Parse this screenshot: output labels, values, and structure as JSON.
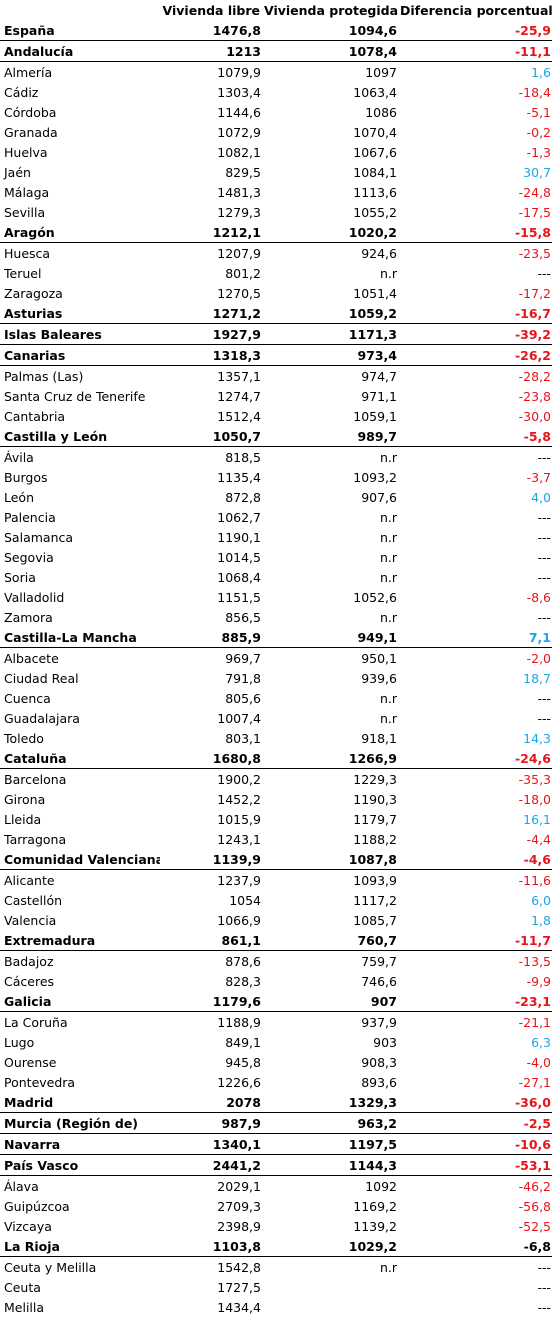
{
  "columns": [
    "Vivienda libre",
    "Vivienda protegida",
    "Diferencia porcentual"
  ],
  "rows": [
    {
      "name": "España",
      "libre": "1476,8",
      "protegida": "1094,6",
      "diff": "-25,9",
      "bold": true,
      "color": "red"
    },
    {
      "name": "Andalucía",
      "libre": "1213",
      "protegida": "1078,4",
      "diff": "-11,1",
      "bold": true,
      "color": "red"
    },
    {
      "name": "Almería",
      "libre": "1079,9",
      "protegida": "1097",
      "diff": "1,6",
      "bold": false,
      "color": "blue"
    },
    {
      "name": "Cádiz",
      "libre": "1303,4",
      "protegida": "1063,4",
      "diff": "-18,4",
      "bold": false,
      "color": "red"
    },
    {
      "name": "Córdoba",
      "libre": "1144,6",
      "protegida": "1086",
      "diff": "-5,1",
      "bold": false,
      "color": "red"
    },
    {
      "name": "Granada",
      "libre": "1072,9",
      "protegida": "1070,4",
      "diff": "-0,2",
      "bold": false,
      "color": "red"
    },
    {
      "name": "Huelva",
      "libre": "1082,1",
      "protegida": "1067,6",
      "diff": "-1,3",
      "bold": false,
      "color": "red"
    },
    {
      "name": "Jaén",
      "libre": "829,5",
      "protegida": "1084,1",
      "diff": "30,7",
      "bold": false,
      "color": "blue"
    },
    {
      "name": "Málaga",
      "libre": "1481,3",
      "protegida": "1113,6",
      "diff": "-24,8",
      "bold": false,
      "color": "red"
    },
    {
      "name": "Sevilla",
      "libre": "1279,3",
      "protegida": "1055,2",
      "diff": "-17,5",
      "bold": false,
      "color": "red"
    },
    {
      "name": "Aragón",
      "libre": "1212,1",
      "protegida": "1020,2",
      "diff": "-15,8",
      "bold": true,
      "color": "red"
    },
    {
      "name": "Huesca",
      "libre": "1207,9",
      "protegida": "924,6",
      "diff": "-23,5",
      "bold": false,
      "color": "red"
    },
    {
      "name": "Teruel",
      "libre": "801,2",
      "protegida": "n.r",
      "diff": "---",
      "bold": false,
      "color": "black"
    },
    {
      "name": "Zaragoza",
      "libre": "1270,5",
      "protegida": "1051,4",
      "diff": "-17,2",
      "bold": false,
      "color": "red"
    },
    {
      "name": "Asturias",
      "libre": "1271,2",
      "protegida": "1059,2",
      "diff": "-16,7",
      "bold": true,
      "color": "red"
    },
    {
      "name": "Islas Baleares",
      "libre": "1927,9",
      "protegida": "1171,3",
      "diff": "-39,2",
      "bold": true,
      "color": "red"
    },
    {
      "name": "Canarias",
      "libre": "1318,3",
      "protegida": "973,4",
      "diff": "-26,2",
      "bold": true,
      "color": "red"
    },
    {
      "name": "Palmas (Las)",
      "libre": "1357,1",
      "protegida": "974,7",
      "diff": "-28,2",
      "bold": false,
      "color": "red"
    },
    {
      "name": "Santa Cruz de Tenerife",
      "libre": "1274,7",
      "protegida": "971,1",
      "diff": "-23,8",
      "bold": false,
      "color": "red"
    },
    {
      "name": "Cantabria",
      "libre": "1512,4",
      "protegida": "1059,1",
      "diff": "-30,0",
      "bold": false,
      "color": "red"
    },
    {
      "name": "Castilla y León",
      "libre": "1050,7",
      "protegida": "989,7",
      "diff": "-5,8",
      "bold": true,
      "color": "red"
    },
    {
      "name": "Ávila",
      "libre": "818,5",
      "protegida": "n.r",
      "diff": "---",
      "bold": false,
      "color": "black"
    },
    {
      "name": "Burgos",
      "libre": "1135,4",
      "protegida": "1093,2",
      "diff": "-3,7",
      "bold": false,
      "color": "red"
    },
    {
      "name": "León",
      "libre": "872,8",
      "protegida": "907,6",
      "diff": "4,0",
      "bold": false,
      "color": "blue"
    },
    {
      "name": "Palencia",
      "libre": "1062,7",
      "protegida": "n.r",
      "diff": "---",
      "bold": false,
      "color": "black"
    },
    {
      "name": "Salamanca",
      "libre": "1190,1",
      "protegida": "n.r",
      "diff": "---",
      "bold": false,
      "color": "black"
    },
    {
      "name": "Segovia",
      "libre": "1014,5",
      "protegida": "n.r",
      "diff": "---",
      "bold": false,
      "color": "black"
    },
    {
      "name": "Soria",
      "libre": "1068,4",
      "protegida": "n.r",
      "diff": "---",
      "bold": false,
      "color": "black"
    },
    {
      "name": "Valladolid",
      "libre": "1151,5",
      "protegida": "1052,6",
      "diff": "-8,6",
      "bold": false,
      "color": "red"
    },
    {
      "name": "Zamora",
      "libre": "856,5",
      "protegida": "n.r",
      "diff": "---",
      "bold": false,
      "color": "black"
    },
    {
      "name": "Castilla-La Mancha",
      "libre": "885,9",
      "protegida": "949,1",
      "diff": "7,1",
      "bold": true,
      "color": "blue"
    },
    {
      "name": "Albacete",
      "libre": "969,7",
      "protegida": "950,1",
      "diff": "-2,0",
      "bold": false,
      "color": "red"
    },
    {
      "name": "Ciudad Real",
      "libre": "791,8",
      "protegida": "939,6",
      "diff": "18,7",
      "bold": false,
      "color": "blue"
    },
    {
      "name": "Cuenca",
      "libre": "805,6",
      "protegida": "n.r",
      "diff": "---",
      "bold": false,
      "color": "black"
    },
    {
      "name": "Guadalajara",
      "libre": "1007,4",
      "protegida": "n.r",
      "diff": "---",
      "bold": false,
      "color": "black"
    },
    {
      "name": "Toledo",
      "libre": "803,1",
      "protegida": "918,1",
      "diff": "14,3",
      "bold": false,
      "color": "blue"
    },
    {
      "name": "Cataluña",
      "libre": "1680,8",
      "protegida": "1266,9",
      "diff": "-24,6",
      "bold": true,
      "color": "red"
    },
    {
      "name": "Barcelona",
      "libre": "1900,2",
      "protegida": "1229,3",
      "diff": "-35,3",
      "bold": false,
      "color": "red"
    },
    {
      "name": "Girona",
      "libre": "1452,2",
      "protegida": "1190,3",
      "diff": "-18,0",
      "bold": false,
      "color": "red"
    },
    {
      "name": "Lleida",
      "libre": "1015,9",
      "protegida": "1179,7",
      "diff": "16,1",
      "bold": false,
      "color": "blue"
    },
    {
      "name": "Tarragona",
      "libre": "1243,1",
      "protegida": "1188,2",
      "diff": "-4,4",
      "bold": false,
      "color": "red"
    },
    {
      "name": "Comunidad Valenciana",
      "libre": "1139,9",
      "protegida": "1087,8",
      "diff": "-4,6",
      "bold": true,
      "color": "red"
    },
    {
      "name": "Alicante",
      "libre": "1237,9",
      "protegida": "1093,9",
      "diff": "-11,6",
      "bold": false,
      "color": "red"
    },
    {
      "name": "Castellón",
      "libre": "1054",
      "protegida": "1117,2",
      "diff": "6,0",
      "bold": false,
      "color": "blue"
    },
    {
      "name": "Valencia",
      "libre": "1066,9",
      "protegida": "1085,7",
      "diff": "1,8",
      "bold": false,
      "color": "blue"
    },
    {
      "name": "Extremadura",
      "libre": "861,1",
      "protegida": "760,7",
      "diff": "-11,7",
      "bold": true,
      "color": "red"
    },
    {
      "name": "Badajoz",
      "libre": "878,6",
      "protegida": "759,7",
      "diff": "-13,5",
      "bold": false,
      "color": "red"
    },
    {
      "name": "Cáceres",
      "libre": "828,3",
      "protegida": "746,6",
      "diff": "-9,9",
      "bold": false,
      "color": "red"
    },
    {
      "name": "Galicia",
      "libre": "1179,6",
      "protegida": "907",
      "diff": "-23,1",
      "bold": true,
      "color": "red"
    },
    {
      "name": "La Coruña",
      "libre": "1188,9",
      "protegida": "937,9",
      "diff": "-21,1",
      "bold": false,
      "color": "red"
    },
    {
      "name": "Lugo",
      "libre": "849,1",
      "protegida": "903",
      "diff": "6,3",
      "bold": false,
      "color": "blue"
    },
    {
      "name": "Ourense",
      "libre": "945,8",
      "protegida": "908,3",
      "diff": "-4,0",
      "bold": false,
      "color": "red"
    },
    {
      "name": "Pontevedra",
      "libre": "1226,6",
      "protegida": "893,6",
      "diff": "-27,1",
      "bold": false,
      "color": "red"
    },
    {
      "name": "Madrid",
      "libre": "2078",
      "protegida": "1329,3",
      "diff": "-36,0",
      "bold": true,
      "color": "red"
    },
    {
      "name": "Murcia (Región de)",
      "libre": "987,9",
      "protegida": "963,2",
      "diff": "-2,5",
      "bold": true,
      "color": "red"
    },
    {
      "name": "Navarra",
      "libre": "1340,1",
      "protegida": "1197,5",
      "diff": "-10,6",
      "bold": true,
      "color": "red"
    },
    {
      "name": "País Vasco",
      "libre": "2441,2",
      "protegida": "1144,3",
      "diff": "-53,1",
      "bold": true,
      "color": "red"
    },
    {
      "name": "Álava",
      "libre": "2029,1",
      "protegida": "1092",
      "diff": "-46,2",
      "bold": false,
      "color": "red"
    },
    {
      "name": "Guipúzcoa",
      "libre": "2709,3",
      "protegida": "1169,2",
      "diff": "-56,8",
      "bold": false,
      "color": "red"
    },
    {
      "name": "Vizcaya",
      "libre": "2398,9",
      "protegida": "1139,2",
      "diff": "-52,5",
      "bold": false,
      "color": "red"
    },
    {
      "name": "La Rioja",
      "libre": "1103,8",
      "protegida": "1029,2",
      "diff": "-6,8",
      "bold": true,
      "color": "black"
    },
    {
      "name": "Ceuta y Melilla",
      "libre": "1542,8",
      "protegida": "n.r",
      "diff": "---",
      "bold": false,
      "color": "black"
    },
    {
      "name": "Ceuta",
      "libre": "1727,5",
      "protegida": "",
      "diff": "---",
      "bold": false,
      "color": "black"
    },
    {
      "name": "Melilla",
      "libre": "1434,4",
      "protegida": "",
      "diff": "---",
      "bold": false,
      "color": "black"
    }
  ]
}
